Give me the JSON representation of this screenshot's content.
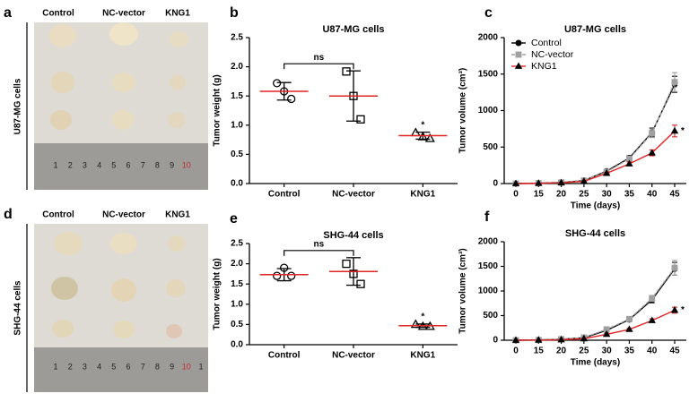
{
  "photos": [
    {
      "panel": "a",
      "row_label": "U87-MG cells",
      "columns": [
        "Control",
        "NC-vector",
        "KNG1"
      ],
      "ruler": [
        "1",
        "2",
        "3",
        "4",
        "5",
        "6",
        "7",
        "8",
        "9",
        "10"
      ]
    },
    {
      "panel": "d",
      "row_label": "SHG-44 cells",
      "columns": [
        "Control",
        "NC-vector",
        "KNG1"
      ],
      "ruler": [
        "1",
        "2",
        "3",
        "4",
        "5",
        "6",
        "7",
        "8",
        "9",
        "10",
        "1"
      ]
    }
  ],
  "chart_data": [
    {
      "type": "dot",
      "panel": "b",
      "title": "U87-MG cells",
      "ylabel": "Tumor weight (g)",
      "categories": [
        "Control",
        "NC-vector",
        "KNG1"
      ],
      "points": [
        [
          1.72,
          1.45,
          1.58
        ],
        [
          1.92,
          1.1,
          1.5
        ],
        [
          0.87,
          0.77,
          0.8
        ]
      ],
      "markers": [
        "circle",
        "square",
        "triangle"
      ],
      "means": [
        1.58,
        1.5,
        0.82
      ],
      "sd": [
        0.15,
        0.43,
        0.06
      ],
      "mean_color": "#e02424",
      "ylim": [
        0,
        2.5
      ],
      "yticks": [
        {
          "value": 0,
          "label": "0.0"
        },
        0.5,
        {
          "value": 1,
          "label": "1.0"
        },
        1.5,
        {
          "value": 2,
          "label": "2.0"
        },
        2.5
      ],
      "bracket_label": "ns",
      "significance": "*"
    },
    {
      "type": "line",
      "panel": "c",
      "title": "U87-MG cells",
      "ylabel": "Tumor volume (cm³)",
      "xlabel": "Time (days)",
      "categories": [
        "0",
        "15",
        "20",
        "25",
        "30",
        "35",
        "40",
        "45"
      ],
      "series": [
        {
          "name": "Control",
          "color": "#000000",
          "marker": "circle",
          "values": [
            0,
            5,
            15,
            40,
            170,
            350,
            700,
            1360
          ],
          "errors": [
            0,
            3,
            6,
            10,
            20,
            30,
            60,
            110
          ]
        },
        {
          "name": "NC-vector",
          "color": "#a0a0a0",
          "marker": "square",
          "values": [
            0,
            5,
            15,
            40,
            160,
            340,
            690,
            1390
          ],
          "errors": [
            0,
            3,
            6,
            10,
            20,
            30,
            60,
            130
          ]
        },
        {
          "name": "KNG1",
          "color": "#e02424",
          "marker": "triangle",
          "values": [
            0,
            3,
            10,
            30,
            140,
            270,
            420,
            720
          ],
          "errors": [
            0,
            2,
            4,
            8,
            15,
            25,
            40,
            80
          ]
        }
      ],
      "ylim": [
        0,
        2000
      ],
      "yticks": [
        0,
        500,
        1000,
        1500,
        2000
      ],
      "legend": "upper left",
      "significance": "*"
    },
    {
      "type": "dot",
      "panel": "e",
      "title": "SHG-44 cells",
      "ylabel": "Tumor weight (g)",
      "categories": [
        "Control",
        "NC-vector",
        "KNG1"
      ],
      "points": [
        [
          1.7,
          1.7,
          1.9
        ],
        [
          2.0,
          1.5,
          1.75
        ],
        [
          0.5,
          0.45,
          0.45
        ]
      ],
      "markers": [
        "circle",
        "square",
        "triangle"
      ],
      "means": [
        1.73,
        1.81,
        0.47
      ],
      "sd": [
        0.15,
        0.34,
        0.04
      ],
      "mean_color": "#e02424",
      "ylim": [
        0,
        2.5
      ],
      "yticks": [
        {
          "value": 0,
          "label": "0.0"
        },
        0.5,
        {
          "value": 1,
          "label": "1.0"
        },
        1.5,
        {
          "value": 2,
          "label": "2.0"
        },
        2.5
      ],
      "bracket_label": "ns",
      "significance": "*"
    },
    {
      "type": "line",
      "panel": "f",
      "title": "SHG-44 cells",
      "ylabel": "Tumor volume (cm³)",
      "xlabel": "Time (days)",
      "categories": [
        "0",
        "15",
        "20",
        "25",
        "30",
        "35",
        "40",
        "45"
      ],
      "series": [
        {
          "name": "Control",
          "color": "#000000",
          "marker": "circle",
          "values": [
            0,
            5,
            20,
            50,
            200,
            420,
            820,
            1450
          ],
          "errors": [
            0,
            3,
            6,
            10,
            20,
            30,
            60,
            130
          ]
        },
        {
          "name": "NC-vector",
          "color": "#a0a0a0",
          "marker": "square",
          "values": [
            0,
            5,
            20,
            55,
            220,
            430,
            850,
            1470
          ],
          "errors": [
            0,
            3,
            6,
            10,
            20,
            30,
            60,
            150
          ]
        },
        {
          "name": "KNG1",
          "color": "#e02424",
          "marker": "triangle",
          "values": [
            0,
            3,
            10,
            30,
            120,
            220,
            400,
            610
          ],
          "errors": [
            0,
            2,
            4,
            8,
            15,
            20,
            35,
            60
          ]
        }
      ],
      "ylim": [
        0,
        2000
      ],
      "yticks": [
        0,
        500,
        1000,
        1500,
        2000
      ],
      "significance": "*"
    }
  ]
}
